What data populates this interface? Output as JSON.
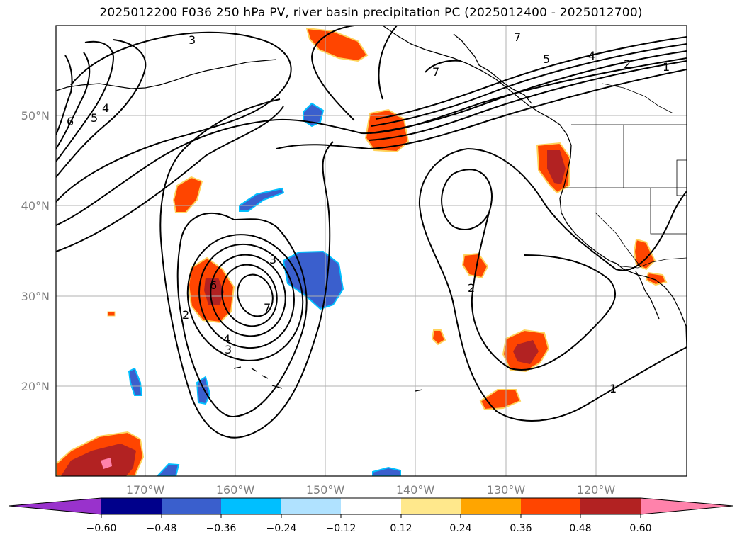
{
  "title": "2025012200 F036 250 hPa PV, river basin precipitation PC (2025012400 - 2025012700)",
  "lat_labels": [
    "50°N",
    "40°N",
    "30°N",
    "20°N"
  ],
  "lon_labels": [
    "170°W",
    "160°W",
    "150°W",
    "140°W",
    "130°W",
    "120°W"
  ],
  "contour_labels": [
    "3",
    "6",
    "5",
    "4",
    "5",
    "4",
    "2",
    "1",
    "7",
    "7",
    "6",
    "3",
    "7",
    "4",
    "3",
    "2",
    "2",
    "1"
  ],
  "colorbar": {
    "ticks": [
      "−0.60",
      "−0.48",
      "−0.36",
      "−0.24",
      "−0.12",
      "0.12",
      "0.24",
      "0.36",
      "0.48",
      "0.60"
    ],
    "colors": [
      "#9932cc",
      "#00008b",
      "#3a5fcd",
      "#00bfff",
      "#b0e2ff",
      "#ffffff",
      "#ffe88c",
      "#ffa500",
      "#ff4500",
      "#b22222",
      "#ff82ab"
    ]
  }
}
